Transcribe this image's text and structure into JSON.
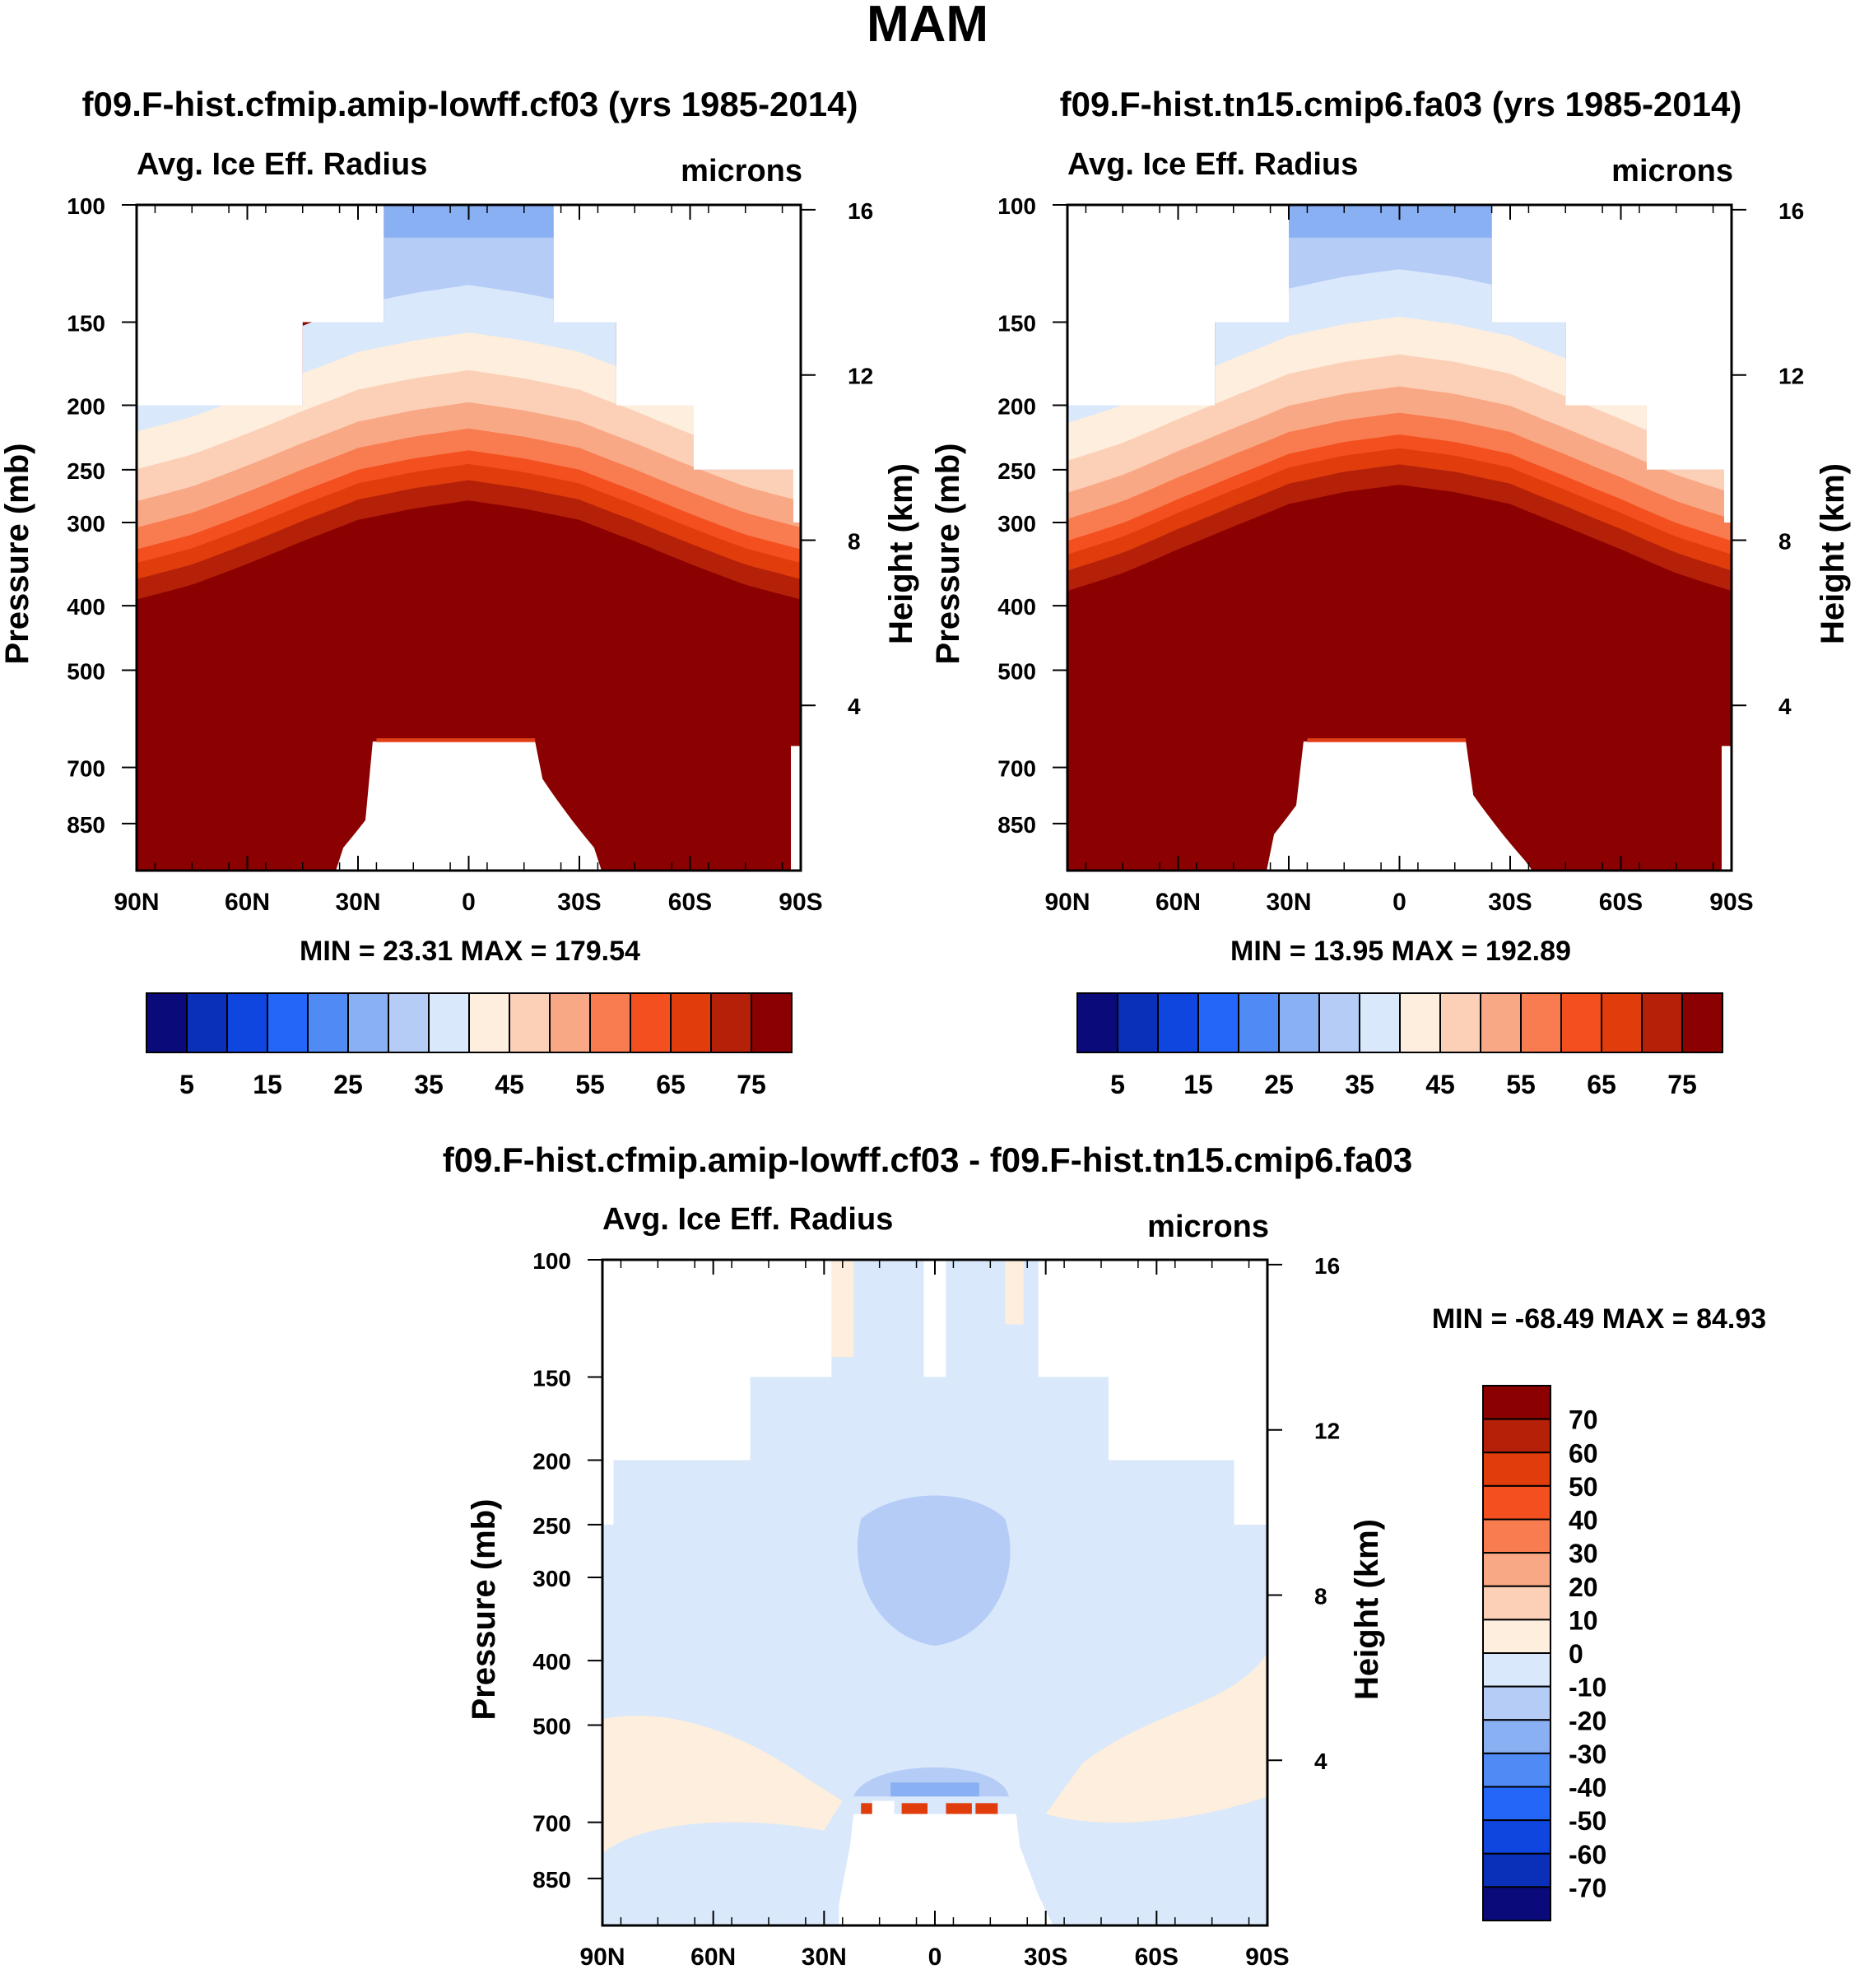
{
  "title": "MAM",
  "palette_main": [
    "#0a0a7a",
    "#0a2fb8",
    "#1046e0",
    "#2466f8",
    "#4f8af5",
    "#8ab0f4",
    "#b5ccf7",
    "#d9e8fb",
    "#fdeedd",
    "#fcd0b7",
    "#f9a885",
    "#f87c50",
    "#f44f1f",
    "#e03c0c",
    "#b52008",
    "#8b0000"
  ],
  "palette_diff": [
    "#0a0a7a",
    "#0a2fb8",
    "#1046e0",
    "#2466f8",
    "#4f8af5",
    "#8ab0f4",
    "#b5ccf7",
    "#d9e8fb",
    "#fdeedd",
    "#fcd0b7",
    "#f9a885",
    "#f87c50",
    "#f44f1f",
    "#e03c0c",
    "#b52008",
    "#8b0000"
  ],
  "chart_data": [
    {
      "type": "heatmap",
      "panel": "top-left",
      "title": "f09.F-hist.cfmip.amip-lowff.cf03 (yrs 1985-2014)",
      "left_label": "Avg. Ice Eff. Radius",
      "right_label": "microns",
      "ylabel": "Pressure (mb)",
      "ylabel_right": "Height (km)",
      "x_ticks": [
        "90N",
        "60N",
        "30N",
        "0",
        "30S",
        "60S",
        "90S"
      ],
      "y_ticks": [
        "100",
        "150",
        "200",
        "250",
        "300",
        "400",
        "500",
        "700",
        "850"
      ],
      "y2_ticks": [
        "16",
        "12",
        "8",
        "4"
      ],
      "ylim": [
        1000,
        100
      ],
      "minmax": "MIN =  23.31   MAX = 179.54",
      "colorbar_labels": [
        "5",
        "15",
        "25",
        "35",
        "45",
        "55",
        "65",
        "75"
      ],
      "contour_levels": [
        5,
        10,
        15,
        20,
        25,
        30,
        35,
        40,
        45,
        50,
        55,
        60,
        65,
        70,
        75
      ],
      "upper_tops": [
        [
          -90,
          200
        ],
        [
          -45,
          200
        ],
        [
          -45,
          150
        ],
        [
          -23,
          150
        ],
        [
          -23,
          100
        ],
        [
          23,
          100
        ],
        [
          23,
          150
        ],
        [
          40,
          150
        ],
        [
          40,
          200
        ],
        [
          61,
          200
        ],
        [
          61,
          250
        ],
        [
          88,
          250
        ],
        [
          88,
          300
        ],
        [
          90,
          300
        ]
      ],
      "band_profile": [
        [
          -90,
          345
        ],
        [
          -75,
          328
        ],
        [
          -60,
          305
        ],
        [
          -45,
          282
        ],
        [
          -30,
          262
        ],
        [
          -15,
          252
        ],
        [
          0,
          245
        ],
        [
          15,
          252
        ],
        [
          30,
          262
        ],
        [
          45,
          282
        ],
        [
          60,
          305
        ],
        [
          75,
          328
        ],
        [
          90,
          345
        ]
      ],
      "band_offsets": [
        -120,
        -95,
        -72,
        -50,
        -30,
        -12,
        0,
        15,
        35
      ]
    },
    {
      "type": "heatmap",
      "panel": "top-right",
      "title": "f09.F-hist.tn15.cmip6.fa03 (yrs 1985-2014)",
      "left_label": "Avg. Ice Eff. Radius",
      "right_label": "microns",
      "ylabel": "Pressure (mb)",
      "ylabel_right": "Height (km)",
      "x_ticks": [
        "90N",
        "60N",
        "30N",
        "0",
        "30S",
        "60S",
        "90S"
      ],
      "y_ticks": [
        "100",
        "150",
        "200",
        "250",
        "300",
        "400",
        "500",
        "700",
        "850"
      ],
      "y2_ticks": [
        "16",
        "12",
        "8",
        "4"
      ],
      "ylim": [
        1000,
        100
      ],
      "minmax": "MIN =  13.95   MAX = 192.89",
      "colorbar_labels": [
        "5",
        "15",
        "25",
        "35",
        "45",
        "55",
        "65",
        "75"
      ],
      "contour_levels": [
        5,
        10,
        15,
        20,
        25,
        30,
        35,
        40,
        45,
        50,
        55,
        60,
        65,
        70,
        75
      ],
      "upper_tops": [
        [
          -90,
          200
        ],
        [
          -50,
          200
        ],
        [
          -50,
          150
        ],
        [
          -30,
          150
        ],
        [
          -30,
          100
        ],
        [
          25,
          100
        ],
        [
          25,
          150
        ],
        [
          45,
          150
        ],
        [
          45,
          200
        ],
        [
          67,
          200
        ],
        [
          67,
          250
        ],
        [
          88,
          250
        ],
        [
          88,
          300
        ],
        [
          90,
          300
        ]
      ],
      "band_profile": [
        [
          -90,
          335
        ],
        [
          -75,
          315
        ],
        [
          -60,
          290
        ],
        [
          -45,
          268
        ],
        [
          -30,
          248
        ],
        [
          -15,
          238
        ],
        [
          0,
          232
        ],
        [
          15,
          238
        ],
        [
          30,
          248
        ],
        [
          45,
          268
        ],
        [
          60,
          290
        ],
        [
          75,
          315
        ],
        [
          90,
          335
        ]
      ],
      "band_offsets": [
        -120,
        -95,
        -72,
        -50,
        -30,
        -12,
        0,
        15,
        35
      ]
    },
    {
      "type": "heatmap",
      "panel": "bottom-difference",
      "title": "f09.F-hist.cfmip.amip-lowff.cf03 - f09.F-hist.tn15.cmip6.fa03",
      "left_label": "Avg. Ice Eff. Radius",
      "right_label": "microns",
      "ylabel": "Pressure (mb)",
      "ylabel_right": "Height (km)",
      "x_ticks": [
        "90N",
        "60N",
        "30N",
        "0",
        "30S",
        "60S",
        "90S"
      ],
      "y_ticks": [
        "100",
        "150",
        "200",
        "250",
        "300",
        "400",
        "500",
        "700",
        "850"
      ],
      "y2_ticks": [
        "16",
        "12",
        "8",
        "4"
      ],
      "ylim": [
        1000,
        100
      ],
      "minmax": "MIN = -68.49   MAX =  84.93",
      "colorbar_labels": [
        "70",
        "60",
        "50",
        "40",
        "30",
        "20",
        "10",
        "0",
        "-10",
        "-20",
        "-30",
        "-40",
        "-50",
        "-60",
        "-70"
      ],
      "contour_levels": [
        -70,
        -60,
        -50,
        -40,
        -30,
        -20,
        -10,
        0,
        10,
        20,
        30,
        40,
        50,
        60,
        70
      ]
    }
  ]
}
